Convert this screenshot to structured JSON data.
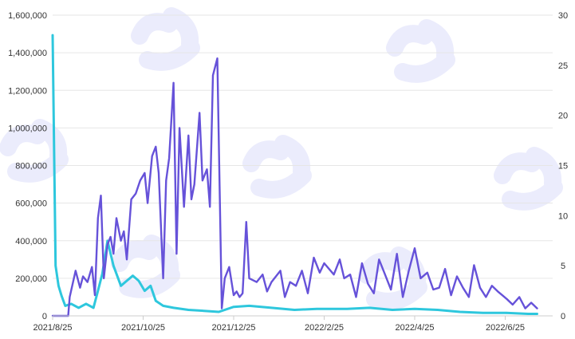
{
  "chart_data": {
    "type": "line",
    "title": "",
    "x_ticks": [
      "2021/8/25",
      "2021/10/25",
      "2021/12/25",
      "2022/2/25",
      "2022/4/25",
      "2022/6/25"
    ],
    "y_left": {
      "range": [
        0,
        1600000
      ],
      "ticks": [
        "0",
        "200,000",
        "400,000",
        "600,000",
        "800,000",
        "1,000,000",
        "1,200,000",
        "1,400,000",
        "1,600,000"
      ]
    },
    "y_right": {
      "range": [
        0,
        30
      ],
      "ticks": [
        "0",
        "5",
        "10",
        "15",
        "20",
        "25",
        "30"
      ]
    },
    "grid": true,
    "series": [
      {
        "axis": "left",
        "color": "#6652d9",
        "x": [
          "2021-08-25",
          "2021-09-05",
          "2021-09-06",
          "2021-09-10",
          "2021-09-13",
          "2021-09-15",
          "2021-09-18",
          "2021-09-21",
          "2021-09-23",
          "2021-09-25",
          "2021-09-27",
          "2021-09-29",
          "2021-10-01",
          "2021-10-03",
          "2021-10-05",
          "2021-10-07",
          "2021-10-10",
          "2021-10-12",
          "2021-10-14",
          "2021-10-17",
          "2021-10-20",
          "2021-10-23",
          "2021-10-26",
          "2021-10-28",
          "2021-10-31",
          "2021-11-03",
          "2021-11-05",
          "2021-11-08",
          "2021-11-10",
          "2021-11-12",
          "2021-11-15",
          "2021-11-17",
          "2021-11-19",
          "2021-11-22",
          "2021-11-25",
          "2021-11-27",
          "2021-11-29",
          "2021-12-02",
          "2021-12-04",
          "2021-12-07",
          "2021-12-09",
          "2021-12-11",
          "2021-12-14",
          "2021-12-17",
          "2021-12-19",
          "2021-12-22",
          "2021-12-25",
          "2021-12-27",
          "2021-12-29",
          "2021-12-31",
          "2022-01-03",
          "2022-01-05",
          "2022-01-10",
          "2022-01-14",
          "2022-01-17",
          "2022-01-20",
          "2022-01-23",
          "2022-01-26",
          "2022-01-29",
          "2022-02-02",
          "2022-02-06",
          "2022-02-10",
          "2022-02-14",
          "2022-02-18",
          "2022-02-22",
          "2022-02-25",
          "2022-03-01",
          "2022-03-05",
          "2022-03-08",
          "2022-03-12",
          "2022-03-16",
          "2022-03-20",
          "2022-03-24",
          "2022-03-28",
          "2022-04-01",
          "2022-04-05",
          "2022-04-09",
          "2022-04-13",
          "2022-04-17",
          "2022-04-21",
          "2022-04-25",
          "2022-04-29",
          "2022-05-03",
          "2022-05-07",
          "2022-05-11",
          "2022-05-15",
          "2022-05-19",
          "2022-05-23",
          "2022-05-27",
          "2022-05-31",
          "2022-06-04",
          "2022-06-08",
          "2022-06-12",
          "2022-06-16",
          "2022-06-20",
          "2022-06-23",
          "2022-06-26",
          "2022-06-30",
          "2022-07-04",
          "2022-07-08",
          "2022-07-12",
          "2022-07-16"
        ],
        "values": [
          0,
          0,
          100000,
          240000,
          150000,
          210000,
          180000,
          260000,
          110000,
          520000,
          640000,
          200000,
          380000,
          420000,
          330000,
          520000,
          400000,
          450000,
          300000,
          620000,
          650000,
          720000,
          760000,
          600000,
          850000,
          900000,
          760000,
          200000,
          720000,
          840000,
          1240000,
          330000,
          1000000,
          580000,
          960000,
          620000,
          700000,
          1080000,
          720000,
          780000,
          580000,
          1280000,
          1370000,
          40000,
          200000,
          260000,
          110000,
          130000,
          100000,
          120000,
          500000,
          200000,
          180000,
          220000,
          130000,
          180000,
          210000,
          240000,
          100000,
          180000,
          160000,
          240000,
          120000,
          310000,
          230000,
          280000,
          220000,
          300000,
          200000,
          220000,
          100000,
          280000,
          170000,
          120000,
          300000,
          220000,
          140000,
          330000,
          100000,
          240000,
          360000,
          200000,
          230000,
          140000,
          150000,
          250000,
          110000,
          210000,
          150000,
          100000,
          270000,
          150000,
          100000,
          160000,
          130000,
          110000,
          90000,
          60000,
          100000,
          40000,
          70000,
          40000
        ]
      },
      {
        "axis": "right",
        "color": "#2ec7dd",
        "x": [
          "2021-08-25",
          "2021-08-27",
          "2021-08-29",
          "2021-08-31",
          "2021-09-03",
          "2021-09-07",
          "2021-09-12",
          "2021-09-17",
          "2021-09-22",
          "2021-09-25",
          "2021-09-28",
          "2021-10-01",
          "2021-10-05",
          "2021-10-10",
          "2021-10-14",
          "2021-10-18",
          "2021-10-22",
          "2021-10-26",
          "2021-10-30",
          "2021-11-03",
          "2021-11-08",
          "2021-11-15",
          "2021-11-25",
          "2021-12-05",
          "2021-12-15",
          "2021-12-25",
          "2022-01-05",
          "2022-01-20",
          "2022-02-05",
          "2022-02-20",
          "2022-03-10",
          "2022-03-25",
          "2022-04-10",
          "2022-04-25",
          "2022-05-10",
          "2022-05-25",
          "2022-06-10",
          "2022-06-25",
          "2022-07-10",
          "2022-07-16"
        ],
        "values": [
          28,
          5,
          3,
          2,
          1,
          1.2,
          0.8,
          1.2,
          0.8,
          2.5,
          4.2,
          7.5,
          5,
          3,
          3.5,
          4,
          3.5,
          2.5,
          3,
          1.5,
          1,
          0.8,
          0.6,
          0.5,
          0.4,
          0.9,
          1,
          0.8,
          0.6,
          0.7,
          0.7,
          0.8,
          0.6,
          0.7,
          0.6,
          0.4,
          0.3,
          0.3,
          0.2,
          0.2
        ]
      }
    ]
  }
}
